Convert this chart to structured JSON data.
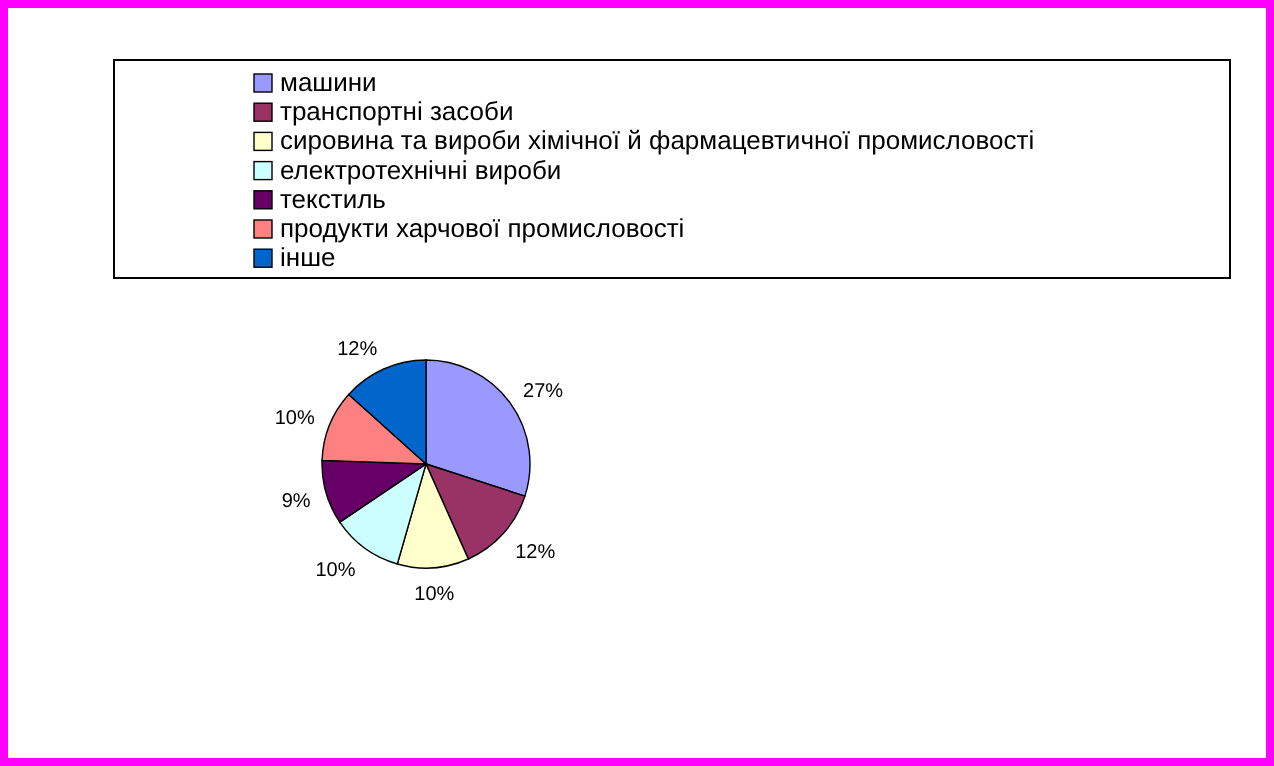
{
  "chart_data": {
    "type": "pie",
    "categories": [
      "машини",
      "транспортні засоби",
      "сировина та вироби хімічної й фармацевтичної промисловості",
      "електротехнічні вироби",
      "текстиль",
      "продукти харчової промисловості",
      "інше"
    ],
    "values": [
      27,
      12,
      10,
      10,
      9,
      10,
      12
    ],
    "colors": [
      "#9999ff",
      "#993366",
      "#ffffcc",
      "#ccffff",
      "#660066",
      "#ff8080",
      "#0066cc"
    ],
    "value_labels": [
      "27%",
      "12%",
      "10%",
      "10%",
      "9%",
      "10%",
      "12%"
    ],
    "legend": "top"
  }
}
